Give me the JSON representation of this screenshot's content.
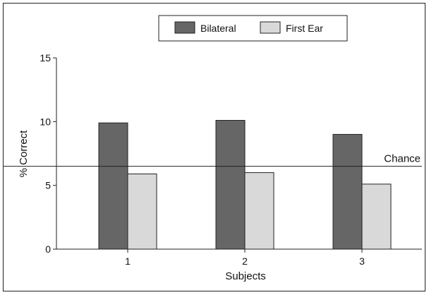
{
  "chart_data": {
    "type": "bar",
    "categories": [
      "1",
      "2",
      "3"
    ],
    "series": [
      {
        "name": "Bilateral",
        "values": [
          9.9,
          10.1,
          9.0
        ],
        "color": "#666666"
      },
      {
        "name": "First Ear",
        "values": [
          5.9,
          6.0,
          5.1
        ],
        "color": "#d9d9d9"
      }
    ],
    "xlabel": "Subjects",
    "ylabel": "% Correct",
    "ylim": [
      0,
      15
    ],
    "yticks": [
      0,
      5,
      10,
      15
    ],
    "grid": false,
    "legend_position": "top-center",
    "reference_line": {
      "label": "Chance",
      "value": 6.5
    }
  }
}
